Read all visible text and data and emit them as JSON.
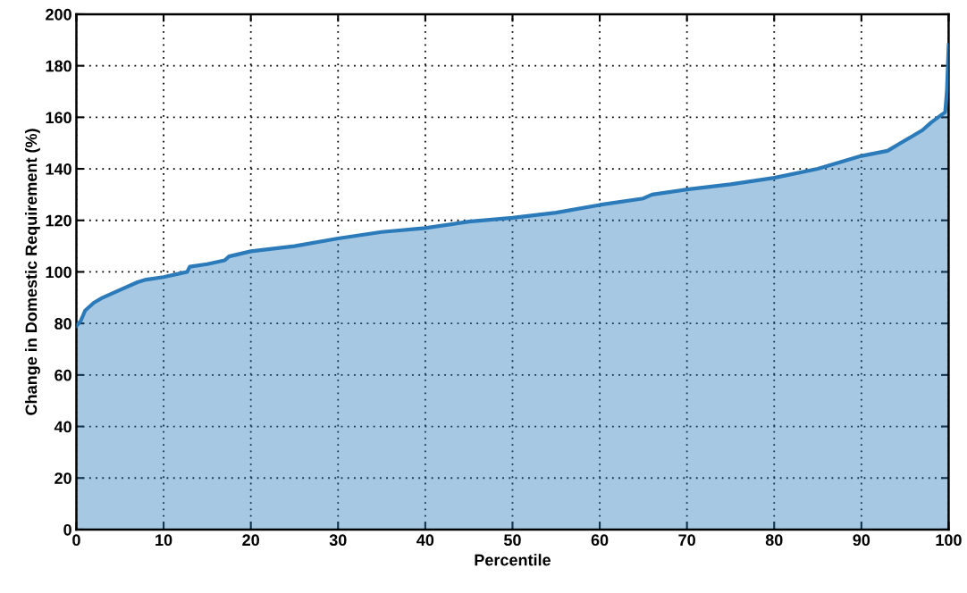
{
  "chart_data": {
    "type": "area",
    "xlabel": "Percentile",
    "ylabel": "Change in Domestic Requirement (%)",
    "x": [
      0,
      0.5,
      1,
      2,
      3,
      5,
      7,
      8,
      10,
      12,
      12.7,
      13,
      15,
      17,
      17.5,
      20,
      25,
      30,
      35,
      40,
      45,
      50,
      55,
      60,
      65,
      66,
      70,
      75,
      80,
      85,
      90,
      93,
      95,
      97,
      98,
      99,
      99.6,
      99.8,
      100
    ],
    "series": [
      {
        "color": "#2b7bba",
        "values": [
          79,
          81,
          85,
          88,
          90,
          93,
          96,
          97,
          98,
          99.5,
          100,
          102,
          103,
          104.5,
          106,
          108,
          110,
          113,
          115.5,
          117,
          119.5,
          121,
          123,
          126,
          128.5,
          130,
          132,
          134,
          136.5,
          140,
          145,
          147,
          151,
          155,
          158,
          160.5,
          162,
          170,
          188
        ]
      }
    ],
    "xlim": [
      0,
      100
    ],
    "xticks": [
      0,
      10,
      20,
      30,
      40,
      50,
      60,
      70,
      80,
      90,
      100
    ],
    "ylim": [
      0,
      200
    ],
    "yticks": [
      0,
      20,
      40,
      60,
      80,
      100,
      120,
      140,
      160,
      180,
      200
    ],
    "grid": true,
    "line_style": "solid"
  }
}
